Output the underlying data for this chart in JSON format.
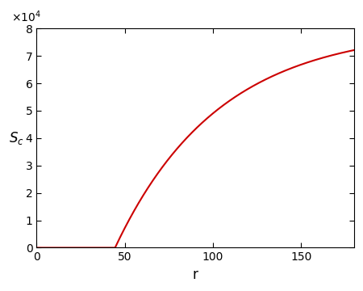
{
  "xlim": [
    0,
    180
  ],
  "ylim": [
    0,
    80000
  ],
  "xlabel": "r",
  "ylabel": "$S_c$",
  "line_color": "#cc0000",
  "line_width": 1.5,
  "yticks": [
    0,
    10000,
    20000,
    30000,
    40000,
    50000,
    60000,
    70000,
    80000
  ],
  "ytick_labels": [
    "0",
    "1",
    "2",
    "3",
    "4",
    "5",
    "6",
    "7",
    "8"
  ],
  "xticks": [
    0,
    50,
    100,
    150
  ],
  "xtick_labels": [
    "0",
    "50",
    "100",
    "150"
  ],
  "background_color": "#ffffff",
  "Kc": 80000,
  "r_bifurcation": 44.5,
  "r_start": 0,
  "r_end": 180,
  "n_points": 2000,
  "scale_factor": 6200,
  "power": 0.55
}
